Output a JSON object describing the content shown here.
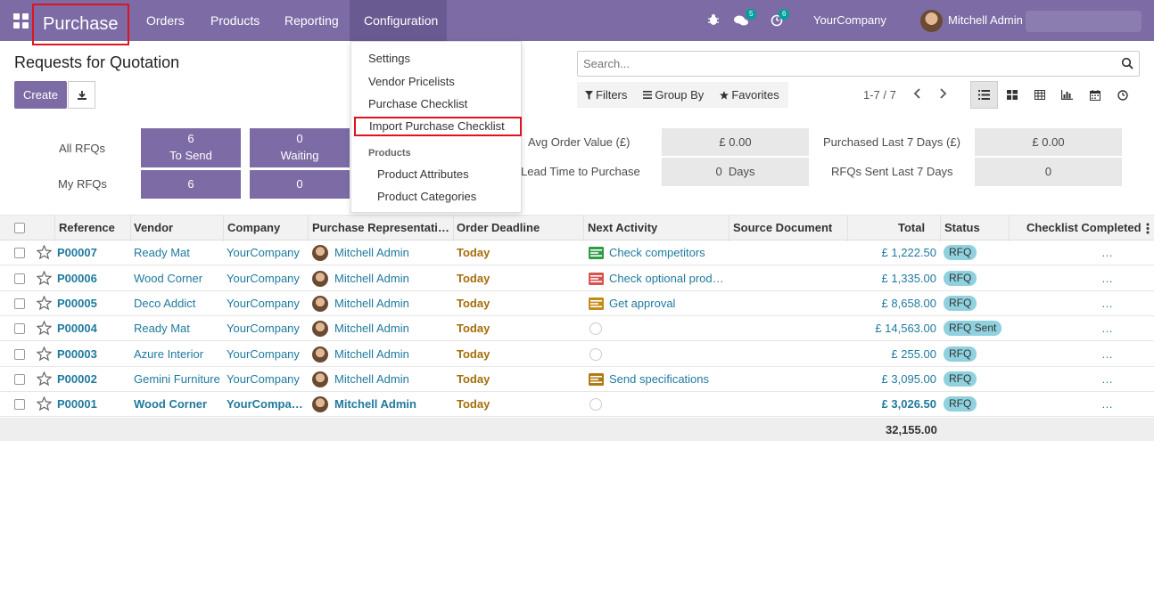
{
  "navbar": {
    "brand": "Purchase",
    "menu": [
      "Orders",
      "Products",
      "Reporting",
      "Configuration"
    ],
    "chat_count": "5",
    "activity_count": "6",
    "company": "YourCompany",
    "user": "Mitchell Admin"
  },
  "control": {
    "title": "Requests for Quotation",
    "create_label": "Create",
    "search_placeholder": "Search...",
    "filters_label": "Filters",
    "groupby_label": "Group By",
    "favorites_label": "Favorites",
    "pager": "1-7 / 7"
  },
  "dropdown": {
    "items": [
      "Settings",
      "Vendor Pricelists",
      "Purchase Checklist",
      "Import Purchase Checklist"
    ],
    "section": "Products",
    "sub_items": [
      "Product Attributes",
      "Product Categories"
    ]
  },
  "stats": {
    "all_rfqs": "All RFQs",
    "my_rfqs": "My RFQs",
    "to_send_count": "6",
    "to_send_label": "To Send",
    "waiting_count": "0",
    "waiting_label": "Waiting",
    "my_to_send": "6",
    "my_waiting": "0",
    "avg_order_label": "Avg Order Value (£)",
    "avg_order_value": "£ 0.00",
    "lead_time_label": "Lead Time to Purchase",
    "lead_time_value": "0  Days",
    "purchased_label": "Purchased Last 7 Days (£)",
    "purchased_value": "£ 0.00",
    "rfqs_sent_label": "RFQs Sent Last 7 Days",
    "rfqs_sent_value": "0"
  },
  "table": {
    "headers": [
      "Reference",
      "Vendor",
      "Company",
      "Purchase Representati…",
      "Order Deadline",
      "Next Activity",
      "Source Document",
      "Total",
      "Status",
      "Checklist Completed"
    ],
    "rows": [
      {
        "ref": "P00007",
        "vendor": "Ready Mat",
        "company": "YourCompany",
        "rep": "Mitchell Admin",
        "deadline": "Today",
        "activity": "Check competitors",
        "activity_color": "#2e9b45",
        "total": "£ 1,222.50",
        "status": "RFQ",
        "checklist": "…"
      },
      {
        "ref": "P00006",
        "vendor": "Wood Corner",
        "company": "YourCompany",
        "rep": "Mitchell Admin",
        "deadline": "Today",
        "activity": "Check optional prod…",
        "activity_color": "#d9534f",
        "total": "£ 1,335.00",
        "status": "RFQ",
        "checklist": "…"
      },
      {
        "ref": "P00005",
        "vendor": "Deco Addict",
        "company": "YourCompany",
        "rep": "Mitchell Admin",
        "deadline": "Today",
        "activity": "Get approval",
        "activity_color": "#c28b1a",
        "total": "£ 8,658.00",
        "status": "RFQ",
        "checklist": "…"
      },
      {
        "ref": "P00004",
        "vendor": "Ready Mat",
        "company": "YourCompany",
        "rep": "Mitchell Admin",
        "deadline": "Today",
        "activity": "",
        "activity_color": "",
        "total": "£ 14,563.00",
        "status": "RFQ Sent",
        "checklist": "…"
      },
      {
        "ref": "P00003",
        "vendor": "Azure Interior",
        "company": "YourCompany",
        "rep": "Mitchell Admin",
        "deadline": "Today",
        "activity": "",
        "activity_color": "",
        "total": "£ 255.00",
        "status": "RFQ",
        "checklist": "…"
      },
      {
        "ref": "P00002",
        "vendor": "Gemini Furniture",
        "company": "YourCompany",
        "rep": "Mitchell Admin",
        "deadline": "Today",
        "activity": "Send specifications",
        "activity_color": "#b07a14",
        "total": "£ 3,095.00",
        "status": "RFQ",
        "checklist": "…"
      },
      {
        "ref": "P00001",
        "vendor": "Wood Corner",
        "company": "YourCompa…",
        "rep": "Mitchell Admin",
        "deadline": "Today",
        "activity": "",
        "activity_color": "",
        "total": "£ 3,026.50",
        "status": "RFQ",
        "checklist": "…"
      }
    ],
    "grand_total": "32,155.00"
  }
}
